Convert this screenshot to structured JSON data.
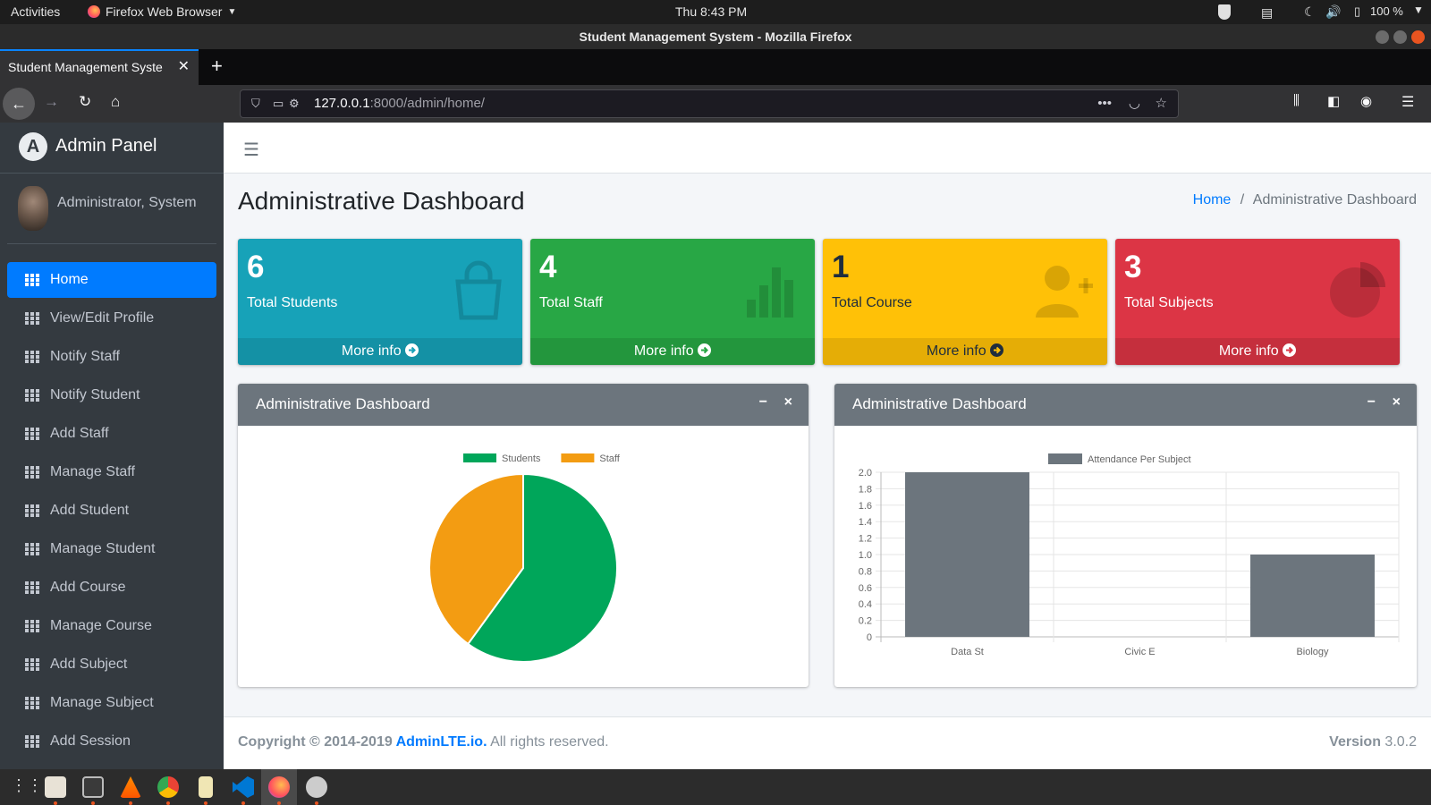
{
  "system": {
    "activities": "Activities",
    "app_menu": "Firefox Web Browser",
    "clock": "Thu  8:43 PM",
    "battery": "100 %"
  },
  "window": {
    "title": "Student Management System - Mozilla Firefox"
  },
  "browser": {
    "tab_title": "Student Management Syste",
    "url_host": "127.0.0.1",
    "url_path": ":8000/admin/home/"
  },
  "sidebar": {
    "brand": "Admin Panel",
    "brand_letter": "A",
    "user": "Administrator, System",
    "items": [
      {
        "label": "Home",
        "active": true
      },
      {
        "label": "View/Edit Profile"
      },
      {
        "label": "Notify Staff"
      },
      {
        "label": "Notify Student"
      },
      {
        "label": "Add Staff"
      },
      {
        "label": "Manage Staff"
      },
      {
        "label": "Add Student"
      },
      {
        "label": "Manage Student"
      },
      {
        "label": "Add Course"
      },
      {
        "label": "Manage Course"
      },
      {
        "label": "Add Subject"
      },
      {
        "label": "Manage Subject"
      },
      {
        "label": "Add Session"
      }
    ]
  },
  "page": {
    "title": "Administrative Dashboard",
    "breadcrumb_home": "Home",
    "breadcrumb_sep": "/",
    "breadcrumb_current": "Administrative Dashboard"
  },
  "stats": [
    {
      "value": "6",
      "label": "Total Students",
      "more": "More info",
      "color": "#17a2b8",
      "icon": "shopping-bag-icon"
    },
    {
      "value": "4",
      "label": "Total Staff",
      "more": "More info",
      "color": "#28a745",
      "icon": "bar-chart-icon"
    },
    {
      "value": "1",
      "label": "Total Course",
      "more": "More info",
      "color": "#ffc107",
      "icon": "user-plus-icon"
    },
    {
      "value": "3",
      "label": "Total Subjects",
      "more": "More info",
      "color": "#dc3545",
      "icon": "pie-chart-icon"
    }
  ],
  "cards": {
    "left_title": "Administrative Dashboard",
    "right_title": "Administrative Dashboard",
    "minimize": "−",
    "close": "×"
  },
  "chart_data": [
    {
      "type": "pie",
      "labels": [
        "Students",
        "Staff"
      ],
      "values": [
        6,
        4
      ],
      "colors": [
        "#00a65a",
        "#f39c12"
      ],
      "legend": "top"
    },
    {
      "type": "bar",
      "categories": [
        "Data St",
        "Civic E",
        "Biology"
      ],
      "series": [
        {
          "name": "Attendance Per Subject",
          "values": [
            2,
            0,
            1
          ],
          "color": "#6c757d"
        }
      ],
      "ylim": [
        0,
        2
      ],
      "yticks": [
        "2.0",
        "1.8",
        "1.6",
        "1.4",
        "1.2",
        "1.0",
        "0.8",
        "0.6",
        "0.4",
        "0.2",
        "0"
      ],
      "grid": true,
      "legend": "top"
    }
  ],
  "footer": {
    "copy": "Copyright © 2014-2019 ",
    "link": "AdminLTE.io.",
    "rights": " All rights reserved.",
    "version_label": "Version",
    "version": " 3.0.2"
  }
}
